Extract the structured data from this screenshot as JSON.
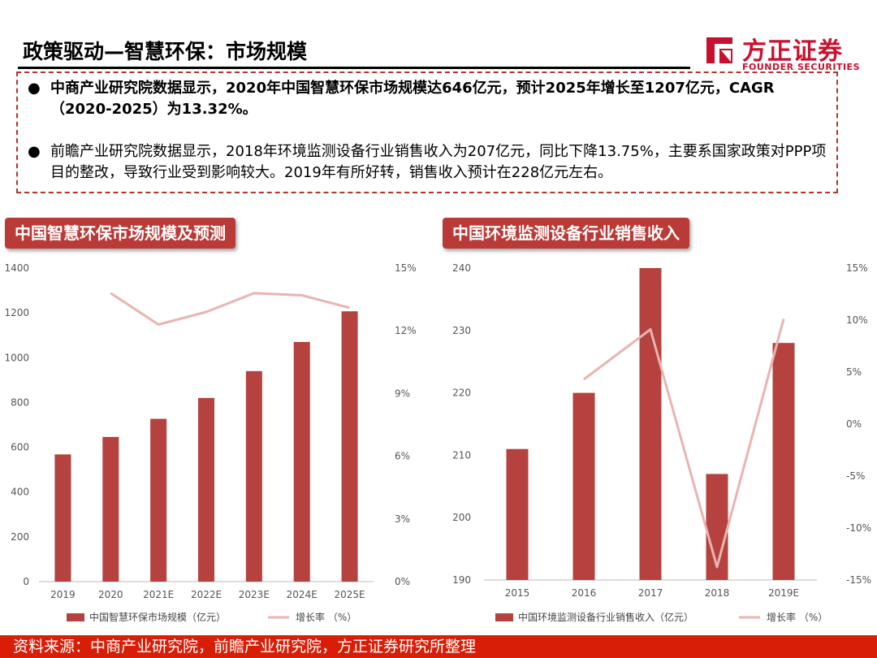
{
  "header": {
    "title": "政策驱动—智慧环保：市场规模",
    "logo_cn": "方正证券",
    "logo_en": "FOUNDER SECURITIES"
  },
  "bullets": [
    "中商产业研究院数据显示，2020年中国智慧环保市场规模达646亿元，预计2025年增长至1207亿元，CAGR（2020-2025）为13.32%。",
    "前瞻产业研究院数据显示，2018年环境监测设备行业销售收入为207亿元，同比下降13.75%，主要系国家政策对PPP项目的整改，导致行业受到影响较大。2019年有所好转，销售收入预计在228亿元左右。"
  ],
  "colors": {
    "bar": "#b5423e",
    "line": "#e8b4b2",
    "accent": "#c8102e",
    "footer": "#d81e06"
  },
  "chart_data": [
    {
      "type": "bar",
      "title": "中国智慧环保市场规模及预测",
      "categories": [
        "2019",
        "2020",
        "2021E",
        "2022E",
        "2023E",
        "2024E",
        "2025E"
      ],
      "series": [
        {
          "name": "中国智慧环保市场规模（亿元）",
          "type": "bar",
          "axis": "left",
          "values": [
            568,
            646,
            727,
            820,
            940,
            1070,
            1207
          ]
        },
        {
          "name": "增长率 （%）",
          "type": "line",
          "axis": "right",
          "values": [
            null,
            13.8,
            12.3,
            12.9,
            13.8,
            13.7,
            13.1
          ]
        }
      ],
      "ylim": [
        0,
        1400
      ],
      "yticks": [
        "0",
        "200",
        "400",
        "600",
        "800",
        "1000",
        "1200",
        "1400"
      ],
      "y2lim": [
        0,
        15
      ],
      "y2ticks": [
        "0%",
        "3%",
        "6%",
        "9%",
        "12%",
        "15%"
      ],
      "legend": "bottom"
    },
    {
      "type": "bar",
      "title": "中国环境监测设备行业销售收入",
      "categories": [
        "2015",
        "2016",
        "2017",
        "2018",
        "2019E"
      ],
      "series": [
        {
          "name": "中国环境监测设备行业销售收入（亿元）",
          "type": "bar",
          "axis": "left",
          "values": [
            211,
            220,
            240,
            207,
            228
          ]
        },
        {
          "name": "增长率 （%）",
          "type": "line",
          "axis": "right",
          "values": [
            null,
            4.3,
            9.1,
            -13.75,
            10.1
          ]
        }
      ],
      "ylim": [
        190,
        240
      ],
      "yticks": [
        "190",
        "200",
        "210",
        "220",
        "230",
        "240"
      ],
      "y2lim": [
        -15,
        15
      ],
      "y2ticks": [
        "-15%",
        "-10%",
        "-5%",
        "0%",
        "5%",
        "10%",
        "15%"
      ],
      "legend": "bottom"
    }
  ],
  "footer": {
    "source": "资料来源：中商产业研究院，前瞻产业研究院，方正证券研究所整理"
  }
}
